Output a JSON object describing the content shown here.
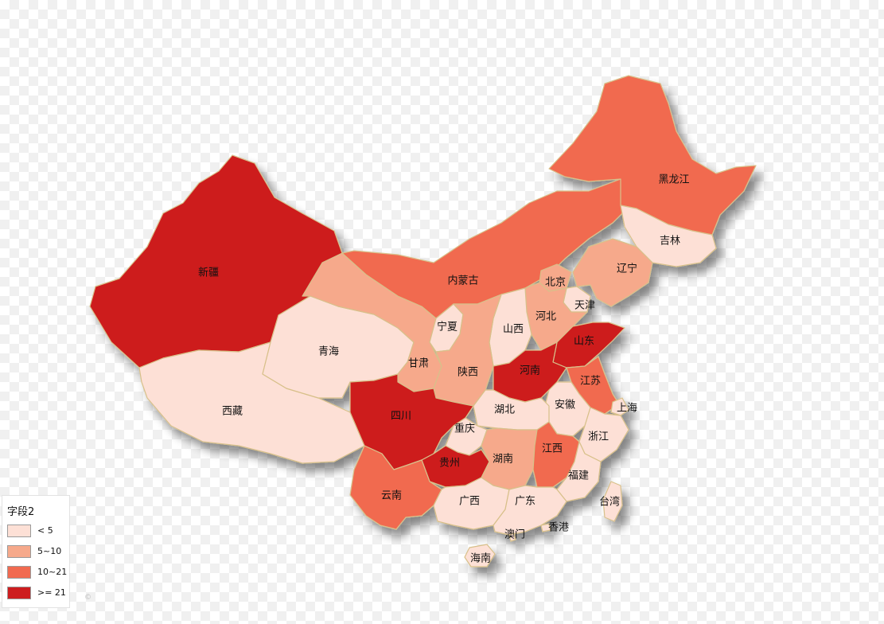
{
  "map": {
    "colors": {
      "lt5": "#fde0d6",
      "5to10": "#f6a98b",
      "10to21": "#f16a50",
      "ge21": "#cd1d1f"
    },
    "provinces": [
      {
        "name": "新疆",
        "class": "ge21"
      },
      {
        "name": "西藏",
        "class": "lt5"
      },
      {
        "name": "青海",
        "class": "lt5"
      },
      {
        "name": "甘肃",
        "class": "5to10"
      },
      {
        "name": "内蒙古",
        "class": "10to21"
      },
      {
        "name": "黑龙江",
        "class": "10to21"
      },
      {
        "name": "吉林",
        "class": "lt5"
      },
      {
        "name": "辽宁",
        "class": "5to10"
      },
      {
        "name": "北京",
        "class": "5to10"
      },
      {
        "name": "天津",
        "class": "lt5"
      },
      {
        "name": "河北",
        "class": "5to10"
      },
      {
        "name": "山西",
        "class": "lt5"
      },
      {
        "name": "宁夏",
        "class": "lt5"
      },
      {
        "name": "陕西",
        "class": "5to10"
      },
      {
        "name": "山东",
        "class": "ge21"
      },
      {
        "name": "河南",
        "class": "ge21"
      },
      {
        "name": "江苏",
        "class": "10to21"
      },
      {
        "name": "安徽",
        "class": "lt5"
      },
      {
        "name": "上海",
        "class": "lt5"
      },
      {
        "name": "湖北",
        "class": "lt5"
      },
      {
        "name": "浙江",
        "class": "lt5"
      },
      {
        "name": "四川",
        "class": "ge21"
      },
      {
        "name": "重庆",
        "class": "lt5"
      },
      {
        "name": "贵州",
        "class": "ge21"
      },
      {
        "name": "湖南",
        "class": "5to10"
      },
      {
        "name": "江西",
        "class": "10to21"
      },
      {
        "name": "福建",
        "class": "lt5"
      },
      {
        "name": "云南",
        "class": "10to21"
      },
      {
        "name": "广西",
        "class": "lt5"
      },
      {
        "name": "广东",
        "class": "lt5"
      },
      {
        "name": "台湾",
        "class": "lt5"
      },
      {
        "name": "澳门",
        "class": "lt5"
      },
      {
        "name": "香港",
        "class": "lt5"
      },
      {
        "name": "海南",
        "class": "lt5"
      }
    ]
  },
  "legend": {
    "title": "字段2",
    "items": [
      {
        "label": "< 5",
        "color": "#fde0d6"
      },
      {
        "label": "5~10",
        "color": "#f6a98b"
      },
      {
        "label": "10~21",
        "color": "#f16a50"
      },
      {
        "label": ">= 21",
        "color": "#cd1d1f"
      }
    ]
  },
  "copyright": "©"
}
